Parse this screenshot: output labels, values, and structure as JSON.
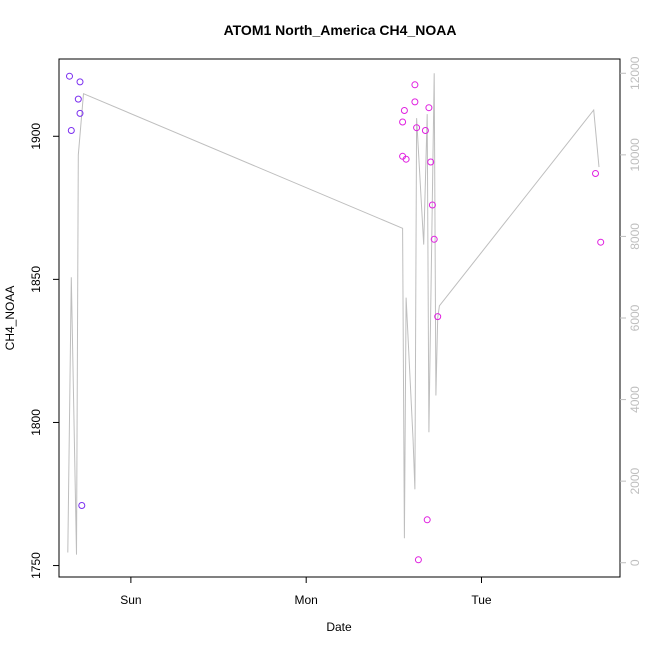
{
  "chart_data": {
    "type": "scatter",
    "title": "ATOM1 North_America CH4_NOAA",
    "xlabel": "Date",
    "ylabel": "CH4_NOAA",
    "x_ticks": [
      {
        "label": "Sun",
        "x": 1.0
      },
      {
        "label": "Mon",
        "x": 2.0
      },
      {
        "label": "Tue",
        "x": 3.0
      }
    ],
    "xlim": [
      0.59,
      3.79
    ],
    "ylim": [
      1746,
      1927
    ],
    "y_ticks": [
      1750,
      1800,
      1850,
      1900
    ],
    "y2lim": [
      -350,
      12350
    ],
    "y2_ticks": [
      0,
      2000,
      4000,
      6000,
      8000,
      10000,
      12000
    ],
    "colors": {
      "points_early": "#7b2ff0",
      "points_late": "#e020e0",
      "line": "#bebebe"
    },
    "series": [
      {
        "name": "CH4_NOAA",
        "axis": "left",
        "points": [
          {
            "x": 0.65,
            "y": 1921
          },
          {
            "x": 0.66,
            "y": 1902
          },
          {
            "x": 0.7,
            "y": 1913
          },
          {
            "x": 0.71,
            "y": 1919
          },
          {
            "x": 0.71,
            "y": 1908
          },
          {
            "x": 0.72,
            "y": 1771
          },
          {
            "x": 2.55,
            "y": 1893
          },
          {
            "x": 2.55,
            "y": 1905
          },
          {
            "x": 2.56,
            "y": 1909
          },
          {
            "x": 2.57,
            "y": 1892
          },
          {
            "x": 2.62,
            "y": 1918
          },
          {
            "x": 2.62,
            "y": 1912
          },
          {
            "x": 2.63,
            "y": 1903
          },
          {
            "x": 2.64,
            "y": 1752
          },
          {
            "x": 2.68,
            "y": 1902
          },
          {
            "x": 2.69,
            "y": 1766
          },
          {
            "x": 2.7,
            "y": 1910
          },
          {
            "x": 2.71,
            "y": 1891
          },
          {
            "x": 2.72,
            "y": 1876
          },
          {
            "x": 2.73,
            "y": 1864
          },
          {
            "x": 2.75,
            "y": 1837
          },
          {
            "x": 3.65,
            "y": 1887
          },
          {
            "x": 3.68,
            "y": 1863
          }
        ]
      },
      {
        "name": "",
        "axis": "right",
        "type": "line",
        "points": [
          {
            "x": 0.64,
            "y": 250
          },
          {
            "x": 0.66,
            "y": 7000
          },
          {
            "x": 0.69,
            "y": 200
          },
          {
            "x": 0.7,
            "y": 10000
          },
          {
            "x": 0.73,
            "y": 11500
          },
          {
            "x": 2.55,
            "y": 8200
          },
          {
            "x": 2.56,
            "y": 600
          },
          {
            "x": 2.57,
            "y": 6500
          },
          {
            "x": 2.61,
            "y": 3000
          },
          {
            "x": 2.62,
            "y": 1800
          },
          {
            "x": 2.63,
            "y": 10900
          },
          {
            "x": 2.67,
            "y": 7800
          },
          {
            "x": 2.69,
            "y": 11000
          },
          {
            "x": 2.7,
            "y": 3200
          },
          {
            "x": 2.73,
            "y": 12000
          },
          {
            "x": 2.74,
            "y": 4100
          },
          {
            "x": 2.75,
            "y": 6000
          },
          {
            "x": 2.76,
            "y": 6300
          },
          {
            "x": 3.64,
            "y": 11100
          },
          {
            "x": 3.67,
            "y": 9700
          }
        ]
      }
    ]
  }
}
